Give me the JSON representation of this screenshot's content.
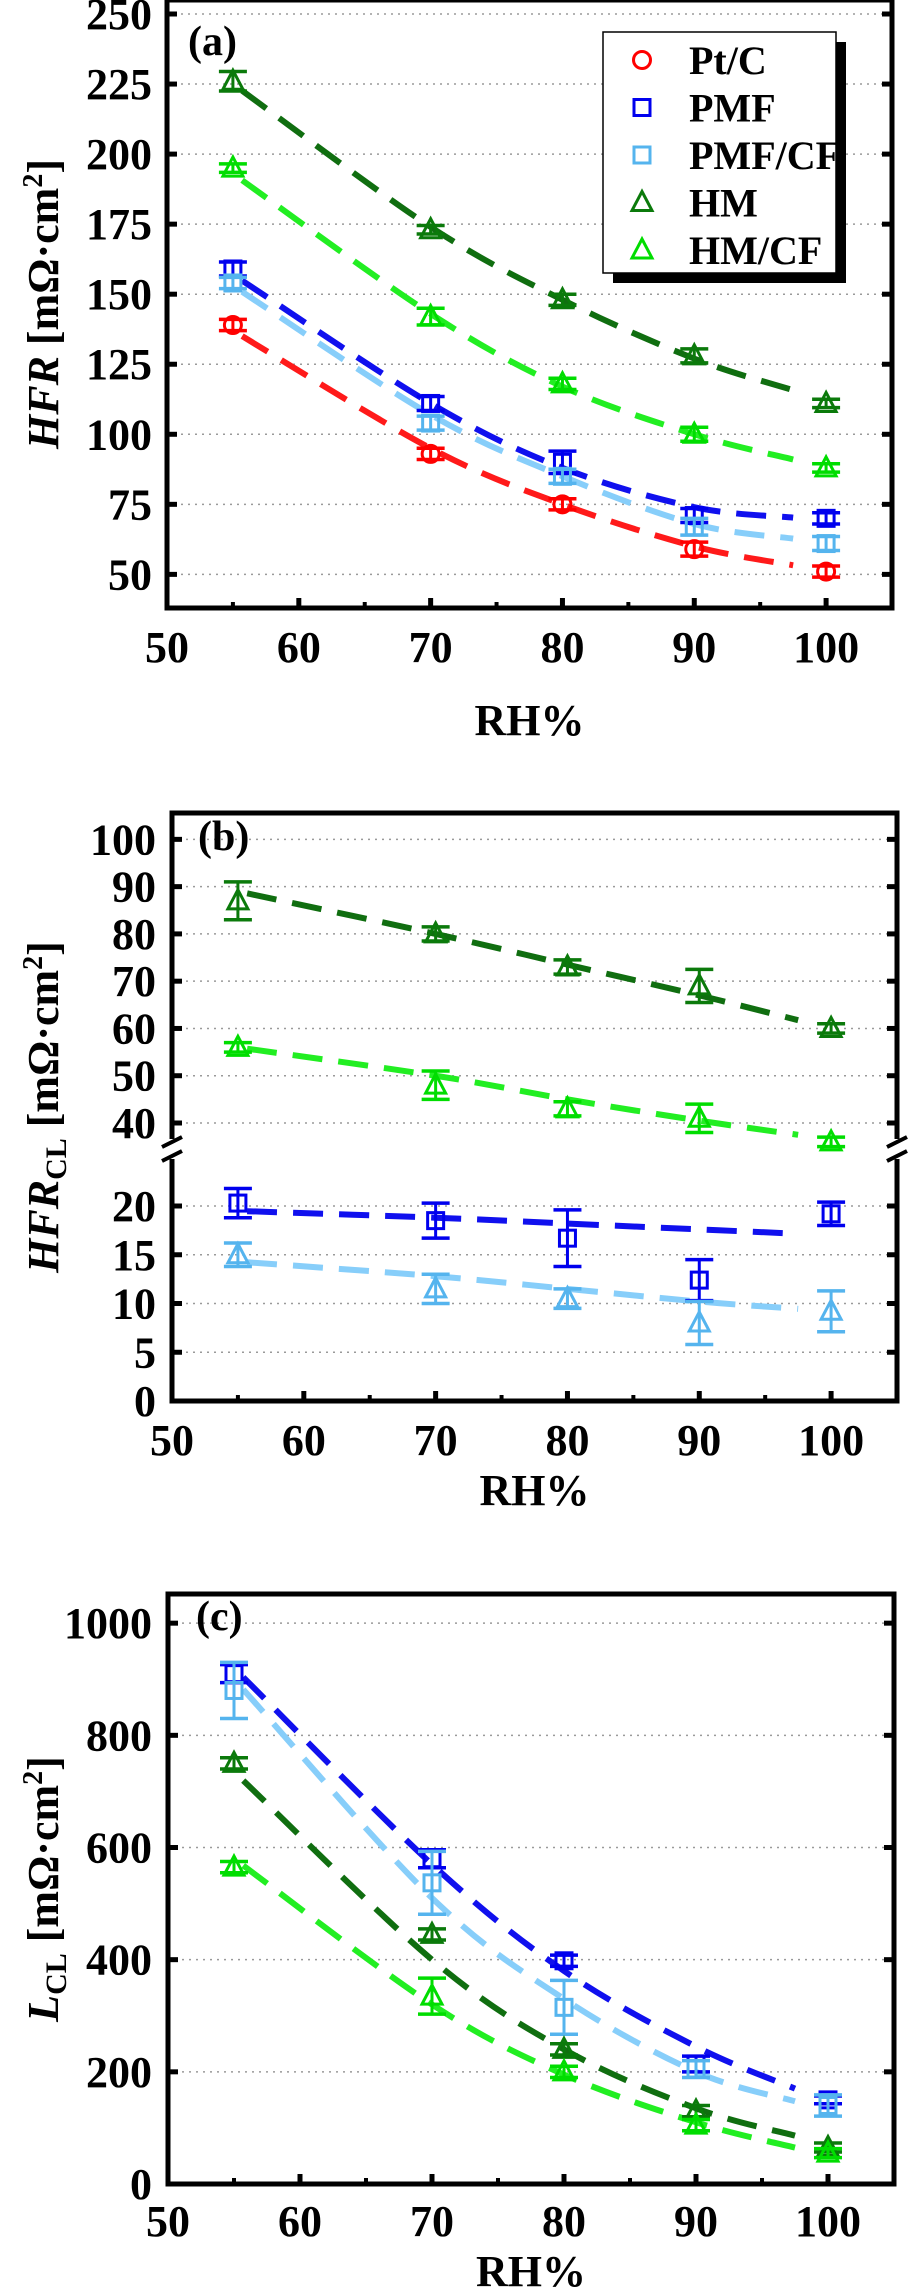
{
  "colors": {
    "Pt/C": "#ff0000",
    "PMF": "#0000ee",
    "PMF/CF": "#55b4ee",
    "HM": "#0b7a0b",
    "HM/CF": "#00dd00"
  },
  "fit_colors": {
    "Pt/C": "#ff1a1a",
    "PMF": "#1010ee",
    "PMF/CF": "#87cefa",
    "HM": "#106e10",
    "HM/CF": "#22ee22"
  },
  "chart_data": [
    {
      "type": "scatter",
      "panel_label": "(a)",
      "xlabel": "RH%",
      "ylabel": {
        "main": "HFR",
        "sub": "",
        "unit": " [mΩ·cm",
        "sup": "2",
        "close": "]"
      },
      "xlim": [
        50,
        105
      ],
      "ylim": [
        38,
        255
      ],
      "xticks": [
        50,
        60,
        70,
        80,
        90,
        100
      ],
      "xtick_labels": [
        "50",
        "60",
        "70",
        "80",
        "90",
        "100"
      ],
      "yticks": [
        50,
        75,
        100,
        125,
        150,
        175,
        200,
        225,
        250
      ],
      "ytick_labels": [
        "50",
        "75",
        "100",
        "125",
        "150",
        "175",
        "200",
        "225",
        "250"
      ],
      "grid": true,
      "legend": {
        "placement": "top-right",
        "entries": [
          {
            "name": "Pt/C",
            "marker": "circle"
          },
          {
            "name": "PMF",
            "marker": "square"
          },
          {
            "name": "PMF/CF",
            "marker": "square"
          },
          {
            "name": "HM",
            "marker": "triangle"
          },
          {
            "name": "HM/CF",
            "marker": "triangle"
          }
        ]
      },
      "x": [
        55,
        70,
        80,
        90,
        100
      ],
      "series": [
        {
          "name": "Pt/C",
          "marker": "circle",
          "values": [
            139,
            93,
            75,
            59,
            51
          ],
          "err": [
            2,
            2,
            2,
            2.5,
            2
          ],
          "fit": [
            137,
            95,
            75,
            60,
            51
          ]
        },
        {
          "name": "PMF",
          "marker": "square",
          "values": [
            159,
            111,
            90,
            71,
            70
          ],
          "err": [
            2.5,
            2.5,
            4,
            2.5,
            2
          ],
          "fit": [
            157,
            111,
            88,
            74,
            69
          ]
        },
        {
          "name": "PMF/CF",
          "marker": "square",
          "values": [
            154,
            104,
            85,
            67,
            61
          ],
          "err": [
            2,
            2.5,
            2.5,
            3,
            2.5
          ],
          "fit": [
            153,
            107,
            85,
            68,
            61
          ]
        },
        {
          "name": "HM",
          "marker": "triangle",
          "values": [
            226,
            173,
            148,
            128,
            111
          ],
          "err": [
            3.5,
            1.5,
            2,
            2.5,
            1.5
          ],
          "fit": [
            225,
            174,
            148,
            127,
            112
          ]
        },
        {
          "name": "HM/CF",
          "marker": "triangle",
          "values": [
            195,
            142,
            118,
            100,
            88
          ],
          "err": [
            1.5,
            3,
            2,
            2.5,
            1.5
          ],
          "fit": [
            193,
            143,
            117,
            100,
            88
          ]
        }
      ]
    },
    {
      "type": "scatter",
      "panel_label": "(b)",
      "xlabel": "RH%",
      "ylabel": {
        "main": "HFR",
        "sub": "CL",
        "unit": " [mΩ·cm",
        "sup": "2",
        "close": "]"
      },
      "xlim": [
        50,
        105
      ],
      "ylim": [
        0,
        105.3
      ],
      "axis_break": [
        25.8,
        34.5
      ],
      "xticks": [
        50,
        60,
        70,
        80,
        90,
        100
      ],
      "xtick_labels": [
        "50",
        "60",
        "70",
        "80",
        "90",
        "100"
      ],
      "yticks": [
        0,
        5,
        10,
        15,
        20,
        40,
        50,
        60,
        70,
        80,
        90,
        100
      ],
      "ytick_labels": [
        "0",
        "5",
        "10",
        "15",
        "20",
        "40",
        "50",
        "60",
        "70",
        "80",
        "90",
        "100"
      ],
      "grid": true,
      "x": [
        55,
        70,
        80,
        90,
        100
      ],
      "series": [
        {
          "name": "HM",
          "marker": "triangle",
          "values": [
            87,
            80,
            73,
            69,
            60
          ],
          "err": [
            4,
            1.5,
            1.5,
            3.5,
            1
          ],
          "fit": [
            89,
            80,
            73.5,
            67,
            60
          ]
        },
        {
          "name": "HM/CF",
          "marker": "triangle",
          "values": [
            56,
            48,
            43,
            41,
            36
          ],
          "err": [
            1,
            3,
            1.5,
            3,
            1
          ],
          "fit": [
            56,
            50,
            45,
            40.5,
            36.5
          ]
        },
        {
          "name": "PMF",
          "marker": "square",
          "values": [
            20.3,
            18.5,
            16.7,
            12.4,
            19.2
          ],
          "err": [
            1.5,
            1.8,
            2.9,
            2.1,
            1.2
          ],
          "fit": [
            19.5,
            18.8,
            18.2,
            17.6,
            17
          ]
        },
        {
          "name": "PMF/CF",
          "marker": "triangle",
          "values": [
            15,
            11.5,
            10.5,
            8,
            9.2
          ],
          "err": [
            1.2,
            1.5,
            1,
            2.2,
            2.1
          ],
          "fit": [
            14.3,
            12.8,
            11.5,
            10.2,
            9.2
          ]
        }
      ]
    },
    {
      "type": "scatter",
      "panel_label": "(c)",
      "xlabel": "RH%",
      "ylabel": {
        "main": "L",
        "sub": "CL",
        "unit": " [mΩ·cm",
        "sup": "2",
        "close": "]"
      },
      "xlim": [
        50,
        105
      ],
      "ylim": [
        0,
        1052
      ],
      "xticks": [
        50,
        60,
        70,
        80,
        90,
        100
      ],
      "xtick_labels": [
        "50",
        "60",
        "70",
        "80",
        "90",
        "100"
      ],
      "yticks": [
        0,
        200,
        400,
        600,
        800,
        1000
      ],
      "ytick_labels": [
        "0",
        "200",
        "400",
        "600",
        "800",
        "1000"
      ],
      "grid": true,
      "x": [
        55,
        70,
        80,
        90,
        100
      ],
      "series": [
        {
          "name": "PMF",
          "marker": "square",
          "values": [
            910,
            580,
            398,
            214,
            150
          ],
          "err": [
            16,
            16,
            10,
            14,
            7
          ],
          "fit": [
            920,
            570,
            380,
            245,
            145
          ]
        },
        {
          "name": "PMF/CF",
          "marker": "square",
          "values": [
            880,
            537,
            315,
            205,
            140
          ],
          "err": [
            50,
            56,
            48,
            15,
            19
          ],
          "fit": [
            900,
            510,
            330,
            200,
            130
          ]
        },
        {
          "name": "HM",
          "marker": "triangle",
          "values": [
            750,
            445,
            240,
            130,
            65
          ],
          "err": [
            10,
            10,
            10,
            10,
            8
          ],
          "fit": [
            735,
            400,
            240,
            135,
            70
          ]
        },
        {
          "name": "HM/CF",
          "marker": "triangle",
          "values": [
            565,
            335,
            200,
            105,
            55
          ],
          "err": [
            10,
            32,
            10,
            10,
            8
          ],
          "fit": [
            580,
            320,
            195,
            110,
            50
          ]
        }
      ]
    }
  ]
}
